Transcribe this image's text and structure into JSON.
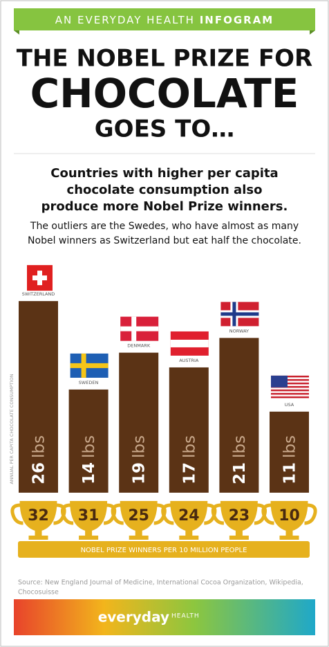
{
  "chart_data": {
    "type": "bar",
    "banner": {
      "light": "AN EVERYDAY HEALTH",
      "bold": "INFOGRAM"
    },
    "title_lines": [
      "THE NOBEL PRIZE FOR",
      "CHOCOLATE",
      "GOES TO…"
    ],
    "subtitle_lines": [
      "Countries with higher per capita",
      "chocolate consumption also",
      "produce more Nobel Prize winners."
    ],
    "note_lines": [
      "The outliers are the Swedes, who have almost as many",
      "Nobel winners as Switzerland but eat half the chocolate."
    ],
    "y_label": "ANNUAL PER CAPITA CHOCOLATE CONSUMPTION",
    "categories": [
      "SWITZERLAND",
      "SWEDEN",
      "DENMARK",
      "AUSTRIA",
      "NORWAY",
      "USA"
    ],
    "values": [
      26,
      14,
      19,
      17,
      21,
      11
    ],
    "value_unit": "lbs",
    "color": "#5b3315",
    "nobel_winners": [
      32,
      31,
      25,
      24,
      23,
      10
    ],
    "nobel_label": "NOBEL PRIZE WINNERS PER 10 MILLION PEOPLE",
    "source_lines": [
      "Source: New England Journal of Medicine, International Cocoa Organization, Wikipedia,",
      "Chocosuisse"
    ],
    "brand": {
      "name": "everyday",
      "sub": "HEALTH"
    }
  }
}
